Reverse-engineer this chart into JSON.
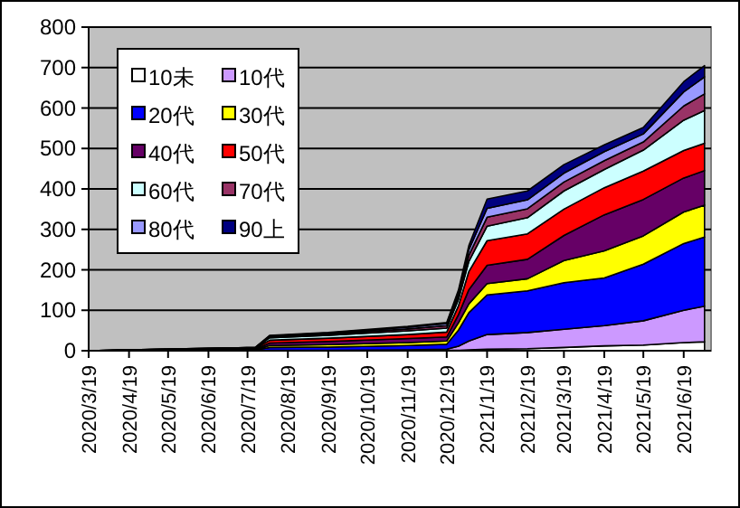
{
  "chart_data": {
    "type": "area",
    "stacked": true,
    "grid": "y",
    "legend": "top left",
    "x": [
      "2020-03-19",
      "2020-04-19",
      "2020-07-25",
      "2020-08-05",
      "2020-09-19",
      "2020-11-19",
      "2020-12-19",
      "2020-12-28",
      "2021-01-05",
      "2021-01-19",
      "2021-02-19",
      "2021-03-19",
      "2021-04-19",
      "2021-05-19",
      "2021-06-19",
      "2021-07-05"
    ],
    "series": [
      {
        "name": "10未",
        "color": "#ffffff",
        "values": [
          0,
          0,
          0,
          0,
          0,
          0,
          1,
          1,
          2,
          4,
          5,
          8,
          12,
          14,
          20,
          22
        ]
      },
      {
        "name": "10代",
        "color": "#cc99ff",
        "values": [
          0,
          0,
          0,
          1,
          1,
          2,
          3,
          10,
          22,
          36,
          40,
          45,
          50,
          60,
          80,
          88
        ]
      },
      {
        "name": "20代",
        "color": "#0000ff",
        "values": [
          0,
          1,
          2,
          7,
          8,
          11,
          12,
          40,
          70,
          98,
          103,
          115,
          118,
          140,
          165,
          171
        ]
      },
      {
        "name": "30代",
        "color": "#ffff00",
        "values": [
          0,
          0,
          1,
          5,
          6,
          7,
          8,
          18,
          22,
          28,
          30,
          55,
          67,
          70,
          78,
          79
        ]
      },
      {
        "name": "40代",
        "color": "#660066",
        "values": [
          0,
          0,
          1,
          6,
          8,
          10,
          10,
          20,
          35,
          45,
          48,
          62,
          89,
          90,
          84,
          85
        ]
      },
      {
        "name": "50代",
        "color": "#ff0000",
        "values": [
          0,
          1,
          2,
          7,
          8,
          10,
          12,
          22,
          45,
          61,
          63,
          65,
          67,
          70,
          68,
          68
        ]
      },
      {
        "name": "60代",
        "color": "#ccffff",
        "values": [
          0,
          0,
          1,
          6,
          7,
          9,
          10,
          16,
          25,
          36,
          40,
          45,
          45,
          52,
          75,
          81
        ]
      },
      {
        "name": "70代",
        "color": "#993366",
        "values": [
          0,
          0,
          1,
          3,
          3,
          5,
          6,
          9,
          15,
          22,
          22,
          22,
          22,
          20,
          35,
          41
        ]
      },
      {
        "name": "80代",
        "color": "#9999ff",
        "values": [
          0,
          0,
          0,
          2,
          3,
          4,
          5,
          8,
          14,
          22,
          22,
          22,
          22,
          20,
          35,
          42
        ]
      },
      {
        "name": "90上",
        "color": "#000080",
        "values": [
          0,
          0,
          0,
          1,
          1,
          2,
          3,
          6,
          10,
          23,
          22,
          21,
          17,
          16,
          25,
          28
        ]
      }
    ],
    "xlim": [
      "2020-03-19",
      "2021-07-10"
    ],
    "xticks": [
      {
        "value": "2020-03-19",
        "label": "2020/3/19"
      },
      {
        "value": "2020-04-19",
        "label": "2020/4/19"
      },
      {
        "value": "2020-05-19",
        "label": "2020/5/19"
      },
      {
        "value": "2020-06-19",
        "label": "2020/6/19"
      },
      {
        "value": "2020-07-19",
        "label": "2020/7/19"
      },
      {
        "value": "2020-08-19",
        "label": "2020/8/19"
      },
      {
        "value": "2020-09-19",
        "label": "2020/9/19"
      },
      {
        "value": "2020-10-19",
        "label": "2020/10/19"
      },
      {
        "value": "2020-11-19",
        "label": "2020/11/19"
      },
      {
        "value": "2020-12-19",
        "label": "2020/12/19"
      },
      {
        "value": "2021-01-19",
        "label": "2021/1/19"
      },
      {
        "value": "2021-02-19",
        "label": "2021/2/19"
      },
      {
        "value": "2021-03-19",
        "label": "2021/3/19"
      },
      {
        "value": "2021-04-19",
        "label": "2021/4/19"
      },
      {
        "value": "2021-05-19",
        "label": "2021/5/19"
      },
      {
        "value": "2021-06-19",
        "label": "2021/6/19"
      }
    ],
    "ylim": [
      0,
      800
    ],
    "yticks": [
      0,
      100,
      200,
      300,
      400,
      500,
      600,
      700,
      800
    ]
  }
}
